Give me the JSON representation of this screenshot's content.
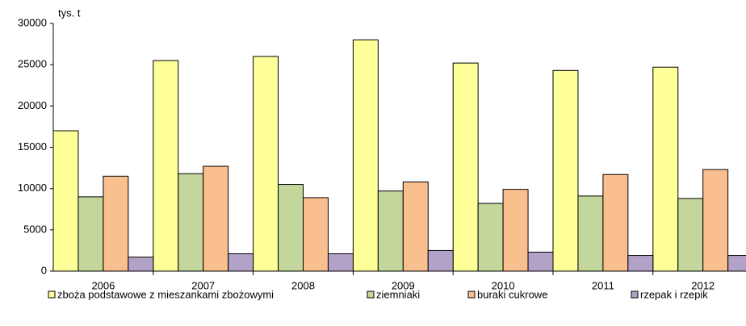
{
  "chart_data": {
    "type": "bar",
    "y_unit_label": "tys. t",
    "categories": [
      "2006",
      "2007",
      "2008",
      "2009",
      "2010",
      "2011",
      "2012"
    ],
    "series": [
      {
        "name": "zboża podstawowe z mieszankami zbożowymi",
        "color": "#ffff99",
        "values": [
          17000,
          25500,
          26000,
          28000,
          25200,
          24300,
          24700
        ]
      },
      {
        "name": "ziemniaki",
        "color": "#c3d69b",
        "values": [
          9000,
          11800,
          10500,
          9700,
          8200,
          9100,
          8800
        ]
      },
      {
        "name": "buraki cukrowe",
        "color": "#fabf8f",
        "values": [
          11500,
          12700,
          8900,
          10800,
          9900,
          11700,
          12300
        ]
      },
      {
        "name": "rzepak i rzepik",
        "color": "#b3a2c7",
        "values": [
          1700,
          2100,
          2100,
          2500,
          2300,
          1900,
          1900
        ]
      }
    ],
    "ylim": [
      0,
      30000
    ],
    "yticks": [
      0,
      5000,
      10000,
      15000,
      20000,
      25000,
      30000
    ],
    "grid": false
  }
}
